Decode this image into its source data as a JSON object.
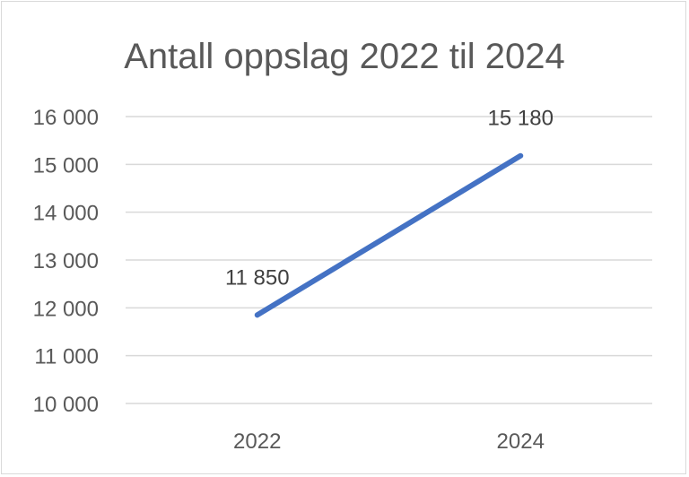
{
  "chart_data": {
    "type": "line",
    "title": "Antall oppslag 2022 til 2024",
    "xlabel": "",
    "ylabel": "",
    "categories": [
      "2022",
      "2024"
    ],
    "series": [
      {
        "values": [
          11850,
          15180
        ],
        "color": "#4472c4"
      }
    ],
    "data_labels": [
      "11 850",
      "15 180"
    ],
    "ylim": [
      10000,
      16000
    ],
    "yticks": [
      10000,
      11000,
      12000,
      13000,
      14000,
      15000,
      16000
    ],
    "ytick_labels": [
      "10 000",
      "11 000",
      "12 000",
      "13 000",
      "14 000",
      "15 000",
      "16 000"
    ],
    "grid": true,
    "legend": "none"
  }
}
